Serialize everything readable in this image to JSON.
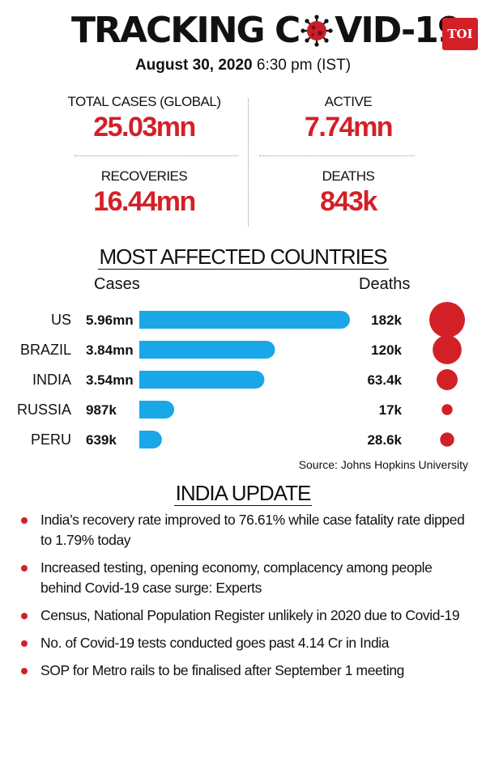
{
  "header": {
    "title_before": "TRACKING C",
    "title_after": "VID-19",
    "title_icon": "virus-icon",
    "logo_text": "TOI",
    "date": "August 30, 2020",
    "time": "6:30 pm (IST)"
  },
  "stats": {
    "total": {
      "label": "TOTAL CASES (GLOBAL)",
      "value": "25.03mn"
    },
    "active": {
      "label": "ACTIVE",
      "value": "7.74mn"
    },
    "recoveries": {
      "label": "RECOVERIES",
      "value": "16.44mn"
    },
    "deaths": {
      "label": "DEATHS",
      "value": "843k"
    }
  },
  "colors": {
    "accent": "#d32027",
    "bar": "#1aa7e8"
  },
  "chart_data": {
    "type": "bar",
    "title": "MOST AFFECTED COUNTRIES",
    "cases_label": "Cases",
    "deaths_label": "Deaths",
    "categories": [
      "US",
      "BRAZIL",
      "INDIA",
      "RUSSIA",
      "PERU"
    ],
    "series": [
      {
        "name": "Cases",
        "values": [
          5.96,
          3.84,
          3.54,
          0.987,
          0.639
        ],
        "labels": [
          "5.96mn",
          "3.84mn",
          "3.54mn",
          "987k",
          "639k"
        ]
      },
      {
        "name": "Deaths",
        "values": [
          182,
          120,
          63.4,
          17,
          28.6
        ],
        "labels": [
          "182k",
          "120k",
          "63.4k",
          "17k",
          "28.6k"
        ]
      }
    ]
  },
  "source": "Source: Johns Hopkins University",
  "india_update": {
    "title": "INDIA UPDATE",
    "items": [
      "India’s recovery rate improved to 76.61% while case fatality rate dipped to 1.79% today",
      "Increased testing, opening economy, complacency among people behind Covid-19 case surge: Experts",
      "Census, National Population Register unlikely in 2020 due to Covid-19",
      "No. of Covid-19 tests conducted goes past 4.14 Cr in India",
      "SOP for Metro rails to be finalised after September 1 meeting"
    ]
  }
}
